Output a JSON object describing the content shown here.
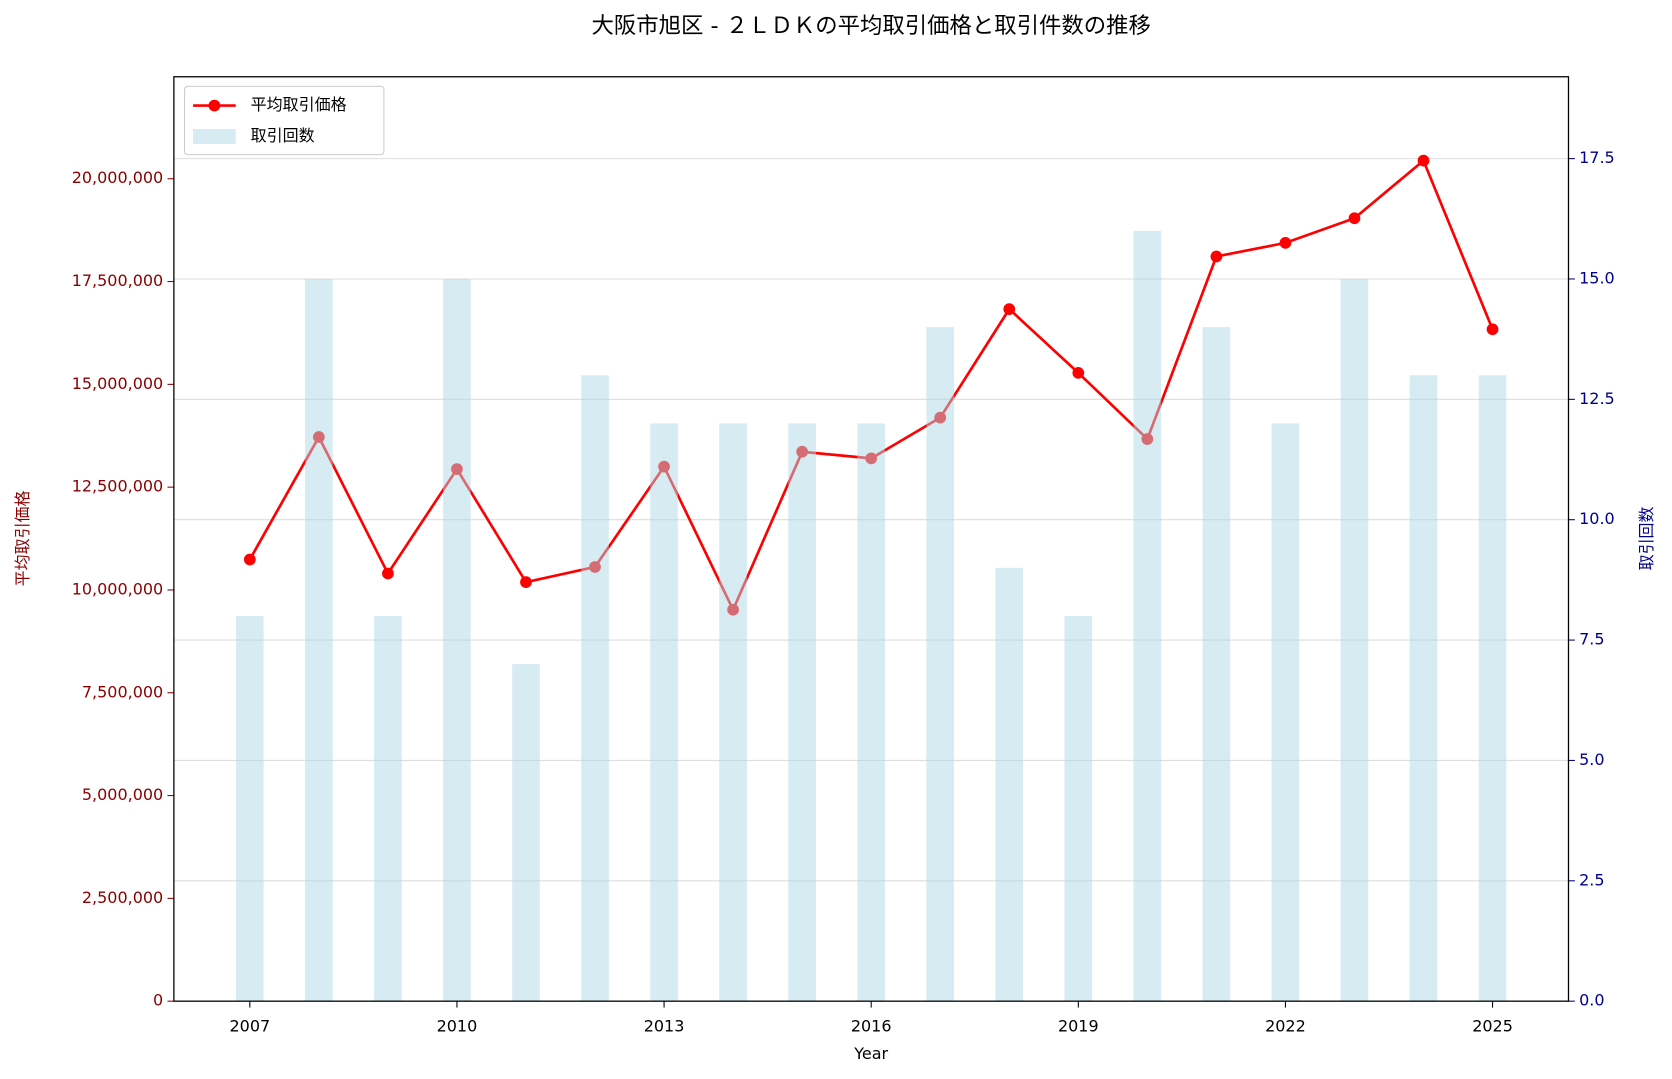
{
  "chart_data": {
    "type": "bar_line",
    "title": "大阪市旭区 - ２ＬＤＫの平均取引価格と取引件数の推移",
    "x_label": "Year",
    "y_label": "平均取引価格",
    "y2_label": "取引回数",
    "x": [
      2007,
      2008,
      2009,
      2010,
      2011,
      2012,
      2013,
      2014,
      2015,
      2016,
      2017,
      2018,
      2019,
      2020,
      2021,
      2022,
      2023,
      2024,
      2025
    ],
    "series": [
      {
        "name": "平均取引価格",
        "color": "#ff0000",
        "type": "line",
        "values": [
          10740000,
          13720000,
          10400000,
          12940000,
          10190000,
          10560000,
          13000000,
          9520000,
          13360000,
          13200000,
          14190000,
          16830000,
          15280000,
          13670000,
          18110000,
          18440000,
          19040000,
          20440000,
          16340000
        ]
      },
      {
        "name": "取引回数",
        "color": "#add8e6",
        "type": "bar",
        "axis": "y2",
        "values": [
          8,
          15,
          8,
          15,
          7,
          13,
          12,
          12,
          12,
          12,
          14,
          9,
          8,
          16,
          14,
          12,
          15,
          13,
          13
        ]
      }
    ],
    "xlim": [
      2005.9,
      2026.1
    ],
    "xticks": [
      2007,
      2010,
      2013,
      2016,
      2019,
      2022,
      2025
    ],
    "ylim": [
      0,
      22480000
    ],
    "yticks": [
      0,
      {
        "value": 2500000,
        "label": "2,500,000"
      },
      {
        "value": 5000000,
        "label": "5,000,000"
      },
      {
        "value": 7500000,
        "label": "7,500,000"
      },
      {
        "value": 10000000,
        "label": "10,000,000"
      },
      {
        "value": 12500000,
        "label": "12,500,000"
      },
      {
        "value": 15000000,
        "label": "15,000,000"
      },
      {
        "value": 17500000,
        "label": "17,500,000"
      },
      {
        "value": 20000000,
        "label": "20,000,000"
      }
    ],
    "y2lim": [
      0,
      19.2
    ],
    "y2ticks": [
      {
        "value": 0,
        "label": "0.0"
      },
      2.5,
      {
        "value": 5,
        "label": "5.0"
      },
      7.5,
      {
        "value": 10,
        "label": "10.0"
      },
      12.5,
      {
        "value": 15,
        "label": "15.0"
      },
      17.5
    ],
    "grid": true,
    "legend": "upper left"
  }
}
